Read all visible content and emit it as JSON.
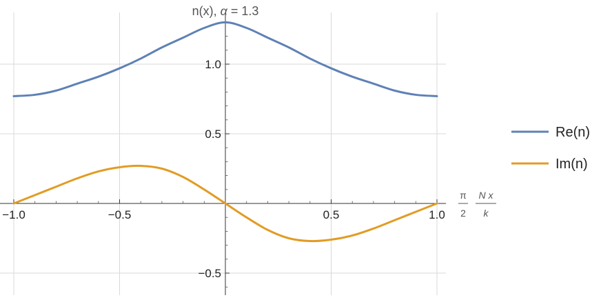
{
  "chart_data": {
    "type": "line",
    "title": {
      "prefix": "n(x), ",
      "symbol": "α",
      "suffix": " = 1.3"
    },
    "xlabel": {
      "frac1_num": "π",
      "frac1_den": "2",
      "frac2_num": "N x",
      "frac2_den": "k"
    },
    "ylabel": "",
    "xlim": [
      -1.0,
      1.0
    ],
    "ylim": [
      -0.65,
      1.3
    ],
    "grid": true,
    "x_ticks": [
      -1.0,
      -0.5,
      0.5,
      1.0
    ],
    "x_tick_labels": [
      "−1.0",
      "−0.5",
      "0.5",
      "1.0"
    ],
    "y_ticks": [
      -0.5,
      0.5,
      1.0
    ],
    "y_tick_labels": [
      "−0.5",
      "0.5",
      "1.0"
    ],
    "legend_position": "right",
    "series": [
      {
        "name": "Re(n)",
        "color": "#5E81B5",
        "x": [
          -1.0,
          -0.9,
          -0.8,
          -0.7,
          -0.6,
          -0.5,
          -0.4,
          -0.3,
          -0.2,
          -0.1,
          0.0,
          0.1,
          0.2,
          0.3,
          0.4,
          0.5,
          0.6,
          0.7,
          0.8,
          0.9,
          1.0
        ],
        "y": [
          0.77,
          0.78,
          0.81,
          0.86,
          0.91,
          0.97,
          1.04,
          1.12,
          1.19,
          1.26,
          1.3,
          1.26,
          1.19,
          1.12,
          1.04,
          0.97,
          0.91,
          0.86,
          0.81,
          0.78,
          0.77
        ]
      },
      {
        "name": "Im(n)",
        "color": "#E19C24",
        "x": [
          -1.0,
          -0.9,
          -0.8,
          -0.7,
          -0.6,
          -0.5,
          -0.4,
          -0.3,
          -0.2,
          -0.1,
          0.0,
          0.1,
          0.2,
          0.3,
          0.4,
          0.5,
          0.6,
          0.7,
          0.8,
          0.9,
          1.0
        ],
        "y": [
          0.0,
          0.06,
          0.12,
          0.18,
          0.23,
          0.26,
          0.27,
          0.25,
          0.19,
          0.1,
          0.0,
          -0.1,
          -0.19,
          -0.25,
          -0.27,
          -0.26,
          -0.23,
          -0.18,
          -0.12,
          -0.06,
          0.0
        ]
      }
    ]
  }
}
